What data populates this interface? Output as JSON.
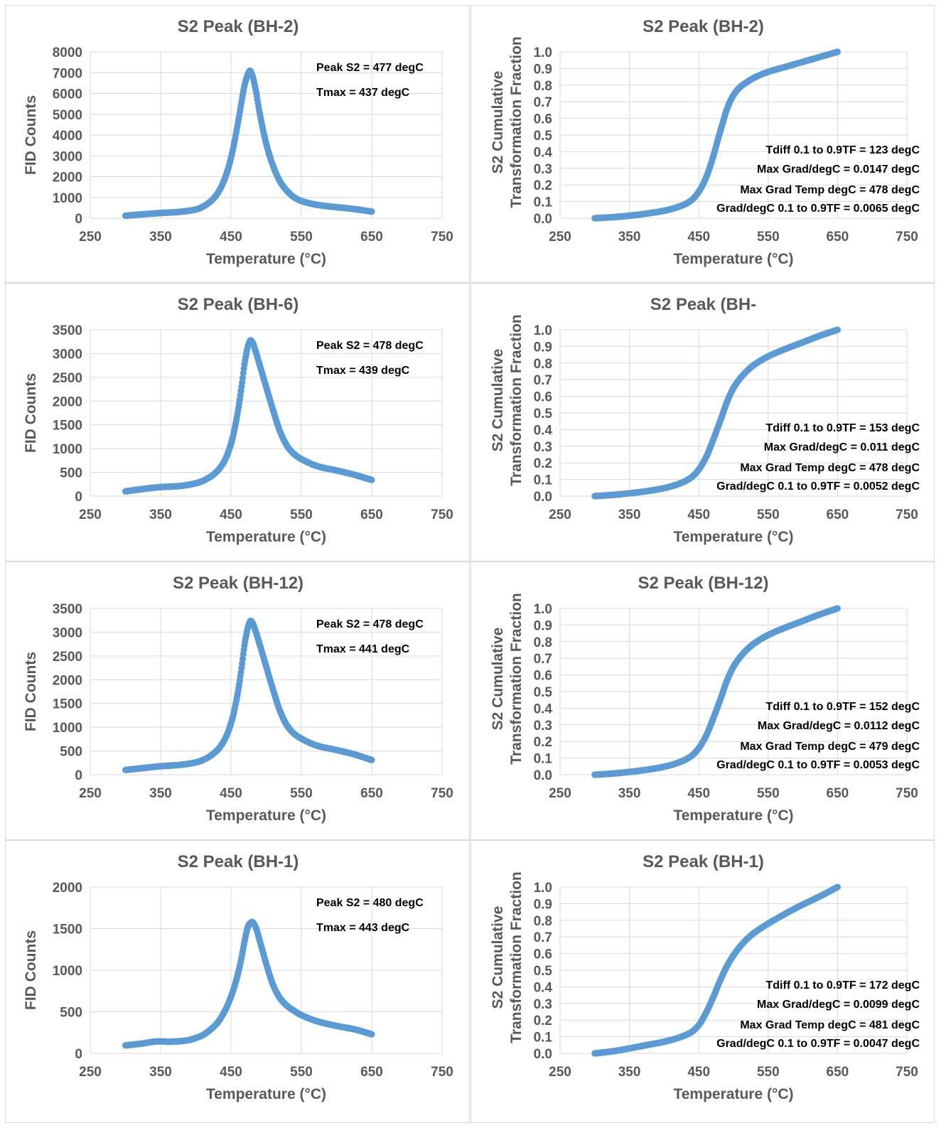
{
  "chart_data": [
    {
      "type": "scatter",
      "title": "S2 Peak (BH-2)",
      "xlabel": "Temperature (°C)",
      "ylabel": "FID Counts",
      "xlim": [
        250,
        750
      ],
      "ylim": [
        0,
        8000
      ],
      "xticks": [
        "250",
        "350",
        "450",
        "550",
        "650",
        "750"
      ],
      "yticks": [
        "0",
        "1000",
        "2000",
        "3000",
        "4000",
        "5000",
        "6000",
        "7000",
        "8000"
      ],
      "grid": true,
      "annotations": [
        "Peak S2 = 477 degC",
        "Tmax = 437 degC"
      ],
      "x": [
        300,
        325,
        350,
        375,
        400,
        410,
        420,
        430,
        440,
        450,
        460,
        465,
        470,
        475,
        477,
        480,
        485,
        490,
        500,
        510,
        520,
        530,
        540,
        550,
        575,
        600,
        625,
        650
      ],
      "y": [
        120,
        190,
        250,
        300,
        420,
        550,
        780,
        1150,
        1800,
        2900,
        4600,
        5600,
        6500,
        7000,
        7100,
        6900,
        6200,
        5200,
        3600,
        2500,
        1750,
        1300,
        1000,
        830,
        630,
        530,
        440,
        320
      ]
    },
    {
      "type": "scatter",
      "title": "S2 Peak (BH-2)",
      "xlabel": "Temperature (°C)",
      "ylabel": "S2 Cumulative Transformation Fraction",
      "xlim": [
        250,
        750
      ],
      "ylim": [
        0,
        1
      ],
      "xticks": [
        "250",
        "350",
        "450",
        "550",
        "650",
        "750"
      ],
      "yticks": [
        "0.0",
        "0.1",
        "0.2",
        "0.3",
        "0.4",
        "0.5",
        "0.6",
        "0.7",
        "0.8",
        "0.9",
        "1.0"
      ],
      "grid": true,
      "annotations": [
        "Tdiff 0.1 to 0.9TF = 123 degC",
        "Max Grad/degC = 0.0147 degC",
        "Max Grad Temp degC = 478 degC",
        "Grad/degC 0.1 to 0.9TF = 0.0065 degC"
      ],
      "x": [
        300,
        325,
        350,
        375,
        400,
        425,
        440,
        450,
        460,
        470,
        478,
        485,
        490,
        500,
        510,
        520,
        530,
        550,
        575,
        600,
        625,
        650
      ],
      "y": [
        0,
        0.006,
        0.015,
        0.028,
        0.045,
        0.075,
        0.11,
        0.16,
        0.24,
        0.36,
        0.48,
        0.58,
        0.65,
        0.74,
        0.79,
        0.82,
        0.845,
        0.88,
        0.91,
        0.94,
        0.97,
        1.0
      ]
    },
    {
      "type": "scatter",
      "title": "S2 Peak (BH-6)",
      "xlabel": "Temperature (°C)",
      "ylabel": "FID Counts",
      "xlim": [
        250,
        750
      ],
      "ylim": [
        0,
        3500
      ],
      "xticks": [
        "250",
        "350",
        "450",
        "550",
        "650",
        "750"
      ],
      "yticks": [
        "0",
        "500",
        "1000",
        "1500",
        "2000",
        "2500",
        "3000",
        "3500"
      ],
      "grid": true,
      "annotations": [
        "Peak S2 = 478 degC",
        "Tmax = 439 degC"
      ],
      "x": [
        300,
        325,
        350,
        375,
        400,
        410,
        420,
        430,
        440,
        450,
        460,
        465,
        470,
        475,
        478,
        480,
        485,
        490,
        500,
        510,
        520,
        530,
        540,
        550,
        575,
        600,
        625,
        650
      ],
      "y": [
        100,
        150,
        190,
        210,
        270,
        320,
        400,
        520,
        720,
        1100,
        1800,
        2300,
        2850,
        3200,
        3280,
        3250,
        3050,
        2800,
        2300,
        1800,
        1350,
        1050,
        880,
        780,
        620,
        540,
        450,
        340
      ]
    },
    {
      "type": "scatter",
      "title": "S2 Peak (BH-",
      "xlabel": "Temperature (°C)",
      "ylabel": "S2 Cumulative Transformation Fraction",
      "xlim": [
        250,
        750
      ],
      "ylim": [
        0,
        1
      ],
      "xticks": [
        "250",
        "350",
        "450",
        "550",
        "650",
        "750"
      ],
      "yticks": [
        "0.0",
        "0.1",
        "0.2",
        "0.3",
        "0.4",
        "0.5",
        "0.6",
        "0.7",
        "0.8",
        "0.9",
        "1.0"
      ],
      "grid": true,
      "annotations": [
        "Tdiff 0.1 to 0.9TF = 153 degC",
        "Max Grad/degC = 0.011 degC",
        "Max Grad Temp degC = 478 degC",
        "Grad/degC 0.1 to 0.9TF = 0.0052 degC"
      ],
      "x": [
        300,
        325,
        350,
        375,
        400,
        425,
        440,
        450,
        460,
        470,
        478,
        485,
        490,
        500,
        510,
        520,
        530,
        550,
        575,
        600,
        625,
        650
      ],
      "y": [
        0,
        0.007,
        0.017,
        0.03,
        0.048,
        0.08,
        0.115,
        0.16,
        0.23,
        0.33,
        0.42,
        0.5,
        0.56,
        0.65,
        0.71,
        0.755,
        0.79,
        0.84,
        0.885,
        0.925,
        0.965,
        1.0
      ]
    },
    {
      "type": "scatter",
      "title": "S2 Peak (BH-12)",
      "xlabel": "Temperature (°C)",
      "ylabel": "FID Counts",
      "xlim": [
        250,
        750
      ],
      "ylim": [
        0,
        3500
      ],
      "xticks": [
        "250",
        "350",
        "450",
        "550",
        "650",
        "750"
      ],
      "yticks": [
        "0",
        "500",
        "1000",
        "1500",
        "2000",
        "2500",
        "3000",
        "3500"
      ],
      "grid": true,
      "annotations": [
        "Peak S2 = 478 degC",
        "Tmax = 441 degC"
      ],
      "x": [
        300,
        325,
        350,
        375,
        400,
        410,
        420,
        430,
        440,
        450,
        460,
        465,
        470,
        475,
        478,
        480,
        485,
        490,
        500,
        510,
        520,
        530,
        540,
        550,
        575,
        600,
        625,
        650
      ],
      "y": [
        100,
        140,
        180,
        205,
        260,
        310,
        390,
        510,
        710,
        1080,
        1750,
        2250,
        2800,
        3150,
        3240,
        3210,
        3020,
        2780,
        2280,
        1780,
        1330,
        1030,
        860,
        760,
        600,
        520,
        430,
        310
      ]
    },
    {
      "type": "scatter",
      "title": "S2 Peak (BH-12)",
      "xlabel": "Temperature (°C)",
      "ylabel": "S2 Cumulative Transformation Fraction",
      "xlim": [
        250,
        750
      ],
      "ylim": [
        0,
        1
      ],
      "xticks": [
        "250",
        "350",
        "450",
        "550",
        "650",
        "750"
      ],
      "yticks": [
        "0.0",
        "0.1",
        "0.2",
        "0.3",
        "0.4",
        "0.5",
        "0.6",
        "0.7",
        "0.8",
        "0.9",
        "1.0"
      ],
      "grid": true,
      "annotations": [
        "Tdiff 0.1 to 0.9TF = 152 degC",
        "Max Grad/degC = 0.0112 degC",
        "Max Grad Temp degC = 479 degC",
        "Grad/degC 0.1 to 0.9TF = 0.0053 degC"
      ],
      "x": [
        300,
        325,
        350,
        375,
        400,
        425,
        440,
        450,
        460,
        470,
        479,
        485,
        490,
        500,
        510,
        520,
        530,
        550,
        575,
        600,
        625,
        650
      ],
      "y": [
        0,
        0.007,
        0.017,
        0.03,
        0.048,
        0.08,
        0.115,
        0.16,
        0.23,
        0.33,
        0.43,
        0.5,
        0.56,
        0.65,
        0.71,
        0.755,
        0.79,
        0.84,
        0.885,
        0.925,
        0.965,
        1.0
      ]
    },
    {
      "type": "scatter",
      "title": "S2 Peak (BH-1)",
      "xlabel": "Temperature (°C)",
      "ylabel": "FID Counts",
      "xlim": [
        250,
        750
      ],
      "ylim": [
        0,
        2000
      ],
      "xticks": [
        "250",
        "350",
        "450",
        "550",
        "650",
        "750"
      ],
      "yticks": [
        "0",
        "500",
        "1000",
        "1500",
        "2000"
      ],
      "grid": true,
      "annotations": [
        "Peak S2 = 480 degC",
        "Tmax = 443 degC"
      ],
      "x": [
        300,
        325,
        340,
        350,
        360,
        375,
        390,
        400,
        410,
        420,
        430,
        440,
        450,
        460,
        465,
        470,
        475,
        480,
        485,
        490,
        500,
        510,
        520,
        530,
        540,
        550,
        575,
        600,
        625,
        650
      ],
      "y": [
        95,
        120,
        140,
        145,
        140,
        145,
        160,
        185,
        220,
        280,
        360,
        490,
        680,
        960,
        1150,
        1380,
        1540,
        1580,
        1520,
        1380,
        1080,
        820,
        660,
        570,
        510,
        460,
        380,
        330,
        290,
        230
      ]
    },
    {
      "type": "scatter",
      "title": "S2 Peak (BH-1)",
      "xlabel": "Temperature (°C)",
      "ylabel": "S2 Cumulative Transformation Fraction",
      "xlim": [
        250,
        750
      ],
      "ylim": [
        0,
        1
      ],
      "xticks": [
        "250",
        "350",
        "450",
        "550",
        "650",
        "750"
      ],
      "yticks": [
        "0.0",
        "0.1",
        "0.2",
        "0.3",
        "0.4",
        "0.5",
        "0.6",
        "0.7",
        "0.8",
        "0.9",
        "1.0"
      ],
      "grid": true,
      "annotations": [
        "Tdiff 0.1 to 0.9TF = 172 degC",
        "Max Grad/degC = 0.0099 degC",
        "Max Grad Temp degC = 481 degC",
        "Grad/degC 0.1 to 0.9TF = 0.0047 degC"
      ],
      "x": [
        300,
        325,
        350,
        375,
        400,
        425,
        440,
        450,
        460,
        470,
        481,
        490,
        500,
        510,
        520,
        530,
        550,
        575,
        600,
        625,
        650
      ],
      "y": [
        0,
        0.012,
        0.03,
        0.05,
        0.07,
        0.1,
        0.13,
        0.17,
        0.24,
        0.33,
        0.44,
        0.52,
        0.59,
        0.645,
        0.69,
        0.725,
        0.78,
        0.84,
        0.895,
        0.945,
        1.0
      ]
    }
  ],
  "series_color": "#5b9bd5"
}
